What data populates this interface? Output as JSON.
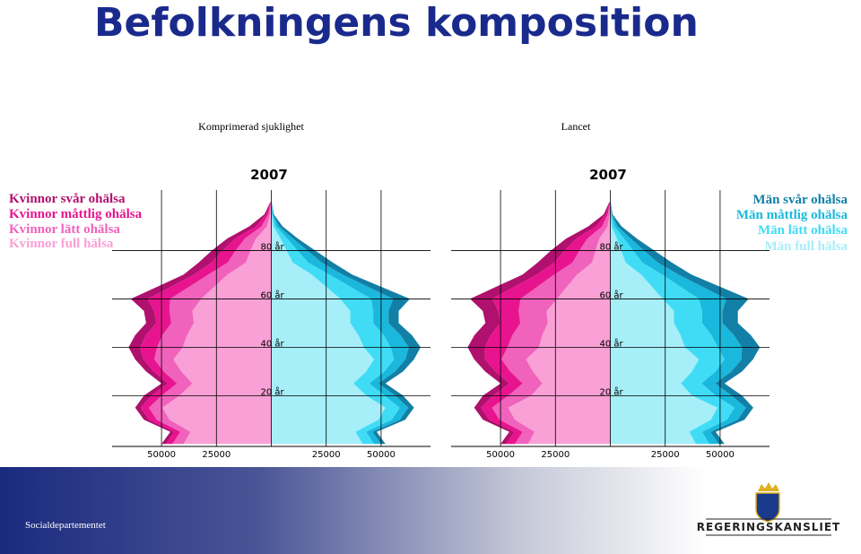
{
  "title": "Befolkningens komposition",
  "footer": {
    "department": "Socialdepartementet",
    "logo": "REGERINGSKANSLIET"
  },
  "chart_data": [
    {
      "type": "pyramid",
      "title": "2007",
      "subtitle": "Komprimerad sjuklighet",
      "y": [
        0,
        5,
        10,
        15,
        20,
        25,
        30,
        35,
        40,
        45,
        50,
        55,
        60,
        65,
        70,
        75,
        80,
        85,
        90,
        95,
        100
      ],
      "xlim": [
        -72500,
        72500
      ],
      "xticks": [
        {
          "value": -50000,
          "label": "50000"
        },
        {
          "value": -25000,
          "label": "25000"
        },
        25000,
        50000
      ],
      "ylim": [
        -1,
        105
      ],
      "yticks": [
        {
          "value": 20,
          "label": "20 år"
        },
        {
          "value": 40,
          "label": "40 år"
        },
        {
          "value": 60,
          "label": "60 år"
        },
        {
          "value": 80,
          "label": "80 år"
        }
      ],
      "grid": true,
      "series": [
        {
          "name": "Kvinnor full hälsa",
          "side": "left",
          "color": "#f9a0d6",
          "values": [
            40000,
            36800,
            46400,
            49600,
            41800,
            36000,
            41000,
            44600,
            40300,
            38400,
            35300,
            36000,
            32000,
            26000,
            20000,
            11600,
            9500,
            7000,
            2000,
            600,
            100
          ]
        },
        {
          "name": "Kvinnor lätt ohälsa",
          "side": "left",
          "color": "#f062bb",
          "values": [
            5000,
            4600,
            5800,
            6200,
            8100,
            7000,
            8000,
            8700,
            11700,
            11200,
            10300,
            10400,
            14100,
            11400,
            8800,
            8300,
            6800,
            5000,
            2500,
            800,
            100
          ]
        },
        {
          "name": "Kvinnor måttlig ohälsa",
          "side": "left",
          "color": "#e8148f",
          "values": [
            3000,
            2800,
            3500,
            3700,
            4600,
            4000,
            4600,
            5000,
            7800,
            7400,
            6800,
            7000,
            10200,
            8300,
            6400,
            7300,
            5900,
            4400,
            2500,
            800,
            100
          ]
        },
        {
          "name": "Kvinnor svår ohälsa",
          "side": "left",
          "color": "#b0106e",
          "values": [
            2000,
            1800,
            2300,
            2500,
            3500,
            3000,
            3400,
            3700,
            5200,
            5000,
            4600,
            4600,
            7700,
            6200,
            4800,
            5900,
            4900,
            3600,
            3000,
            900,
            200
          ]
        },
        {
          "name": "Män full hälsa",
          "side": "right",
          "color": "#a6eef8",
          "values": [
            41600,
            38400,
            48800,
            52000,
            43200,
            37400,
            43200,
            46800,
            42200,
            39700,
            36000,
            36000,
            31500,
            25000,
            18500,
            9800,
            7000,
            4200,
            1000,
            200,
            40
          ]
        },
        {
          "name": "Män lätt ohälsa",
          "side": "right",
          "color": "#40dcf6",
          "values": [
            5200,
            4800,
            6100,
            6500,
            8400,
            7300,
            8400,
            9100,
            12200,
            11500,
            10400,
            10400,
            13900,
            11000,
            8100,
            7000,
            5000,
            3000,
            1300,
            300,
            50
          ]
        },
        {
          "name": "Män måttlig ohälsa",
          "side": "right",
          "color": "#1ab8dc",
          "values": [
            3100,
            2900,
            3700,
            3900,
            4800,
            4200,
            4800,
            5200,
            8200,
            7700,
            7000,
            7000,
            10100,
            8000,
            5900,
            6200,
            4400,
            2600,
            1300,
            300,
            50
          ]
        },
        {
          "name": "Män svår ohälsa",
          "side": "right",
          "color": "#127fa6",
          "values": [
            2100,
            1900,
            2400,
            2600,
            3600,
            3100,
            3600,
            3900,
            5400,
            5100,
            4600,
            4600,
            7600,
            6000,
            4400,
            5000,
            3600,
            2200,
            1500,
            300,
            60
          ]
        }
      ]
    },
    {
      "type": "pyramid",
      "title": "2007",
      "subtitle": "Lancet",
      "y": [
        0,
        5,
        10,
        15,
        20,
        25,
        30,
        35,
        40,
        45,
        50,
        55,
        60,
        65,
        70,
        75,
        80,
        85,
        90,
        95,
        100
      ],
      "xlim": [
        -72500,
        72500
      ],
      "xticks": [
        {
          "value": -50000,
          "label": "50000"
        },
        {
          "value": -25000,
          "label": "25000"
        },
        25000,
        50000
      ],
      "ylim": [
        -1,
        105
      ],
      "yticks": [
        {
          "value": 20,
          "label": "20 år"
        },
        {
          "value": 40,
          "label": "40 år"
        },
        {
          "value": 60,
          "label": "60 år"
        },
        {
          "value": 80,
          "label": "80 år"
        }
      ],
      "grid": true,
      "series": [
        {
          "name": "Kvinnor full hälsa",
          "side": "left",
          "color": "#f9a0d6",
          "values": [
            37500,
            34500,
            43500,
            46500,
            36000,
            31000,
            35300,
            38400,
            32500,
            31000,
            28500,
            29000,
            24300,
            19800,
            15200,
            8300,
            6800,
            5000,
            1200,
            400,
            60
          ]
        },
        {
          "name": "Kvinnor lätt ohälsa",
          "side": "left",
          "color": "#f062bb",
          "values": [
            6000,
            5500,
            7000,
            7400,
            10400,
            9000,
            10300,
            11200,
            14300,
            13600,
            12500,
            12800,
            16600,
            13500,
            10400,
            8900,
            7300,
            5400,
            2500,
            800,
            120
          ]
        },
        {
          "name": "Kvinnor måttlig ohälsa",
          "side": "left",
          "color": "#e8148f",
          "values": [
            4000,
            3700,
            4600,
            5000,
            7000,
            6000,
            6800,
            7400,
            10400,
            9900,
            9100,
            9300,
            12800,
            10400,
            8000,
            8300,
            6800,
            5000,
            2800,
            800,
            140
          ]
        },
        {
          "name": "Kvinnor svår ohälsa",
          "side": "left",
          "color": "#b0106e",
          "values": [
            2500,
            2300,
            2900,
            3100,
            4600,
            4000,
            4600,
            5000,
            7800,
            7400,
            6800,
            7000,
            10200,
            8300,
            6400,
            7600,
            6200,
            4600,
            3500,
            1000,
            180
          ]
        },
        {
          "name": "Män full hälsa",
          "side": "right",
          "color": "#a6eef8",
          "values": [
            39000,
            36000,
            45800,
            48800,
            37200,
            32200,
            37200,
            40300,
            34000,
            32000,
            29000,
            29000,
            23900,
            19000,
            14100,
            7000,
            5000,
            3000,
            600,
            100,
            20
          ]
        },
        {
          "name": "Män lätt ohälsa",
          "side": "right",
          "color": "#40dcf6",
          "values": [
            6200,
            5800,
            7300,
            7800,
            10800,
            9400,
            10800,
            11700,
            15000,
            14100,
            12800,
            12800,
            16400,
            13000,
            9600,
            7600,
            5400,
            3200,
            1300,
            300,
            50
          ]
        },
        {
          "name": "Män måttlig ohälsa",
          "side": "right",
          "color": "#1ab8dc",
          "values": [
            4200,
            3800,
            4900,
            5200,
            7200,
            6200,
            7200,
            7800,
            10900,
            10200,
            9300,
            9300,
            12600,
            10000,
            7400,
            7000,
            5000,
            3000,
            1400,
            300,
            60
          ]
        },
        {
          "name": "Män svår ohälsa",
          "side": "right",
          "color": "#127fa6",
          "values": [
            2600,
            2400,
            3100,
            3300,
            4800,
            4200,
            4800,
            5200,
            8200,
            7700,
            7000,
            7000,
            10100,
            8000,
            5900,
            6400,
            4600,
            2800,
            1800,
            300,
            70
          ]
        }
      ]
    }
  ]
}
